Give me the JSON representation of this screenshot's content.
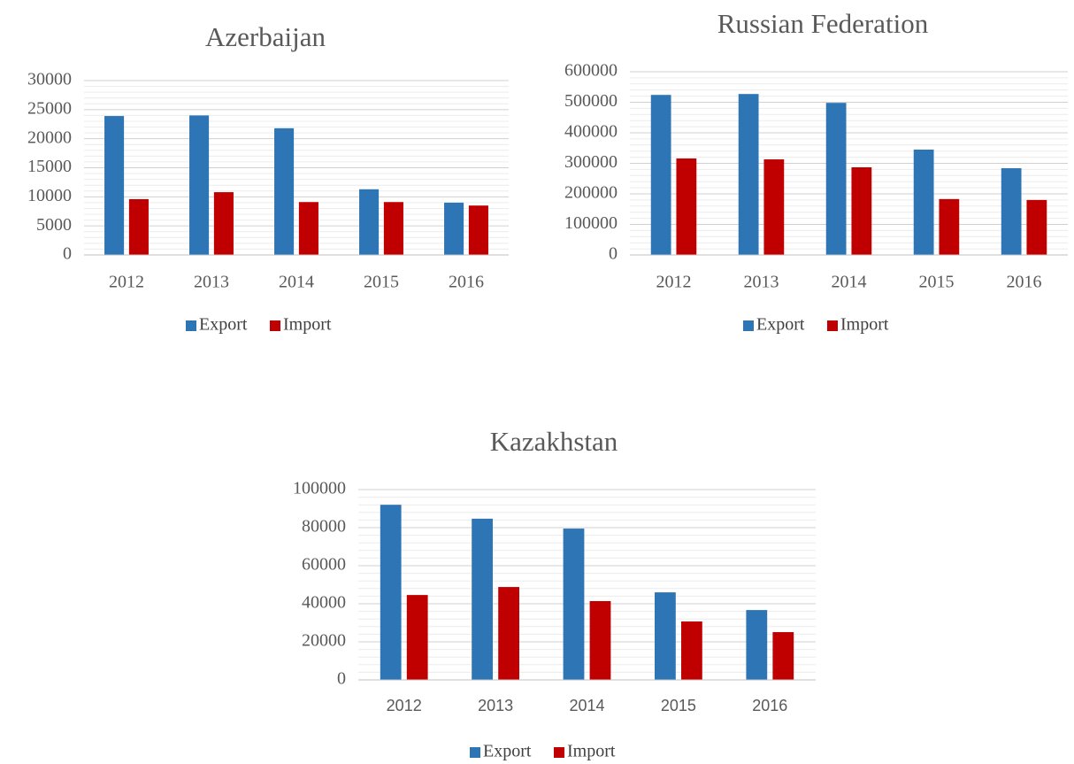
{
  "chart_data": [
    {
      "type": "bar",
      "title": "Azerbaijan",
      "categories": [
        "2012",
        "2013",
        "2014",
        "2015",
        "2016"
      ],
      "series": [
        {
          "name": "Export",
          "color": "#2e75b6",
          "values": [
            23900,
            24000,
            21800,
            11300,
            9000
          ]
        },
        {
          "name": "Import",
          "color": "#c00000",
          "values": [
            9600,
            10800,
            9100,
            9100,
            8500
          ]
        }
      ],
      "ylim": [
        0,
        30000
      ],
      "yticks": [
        0,
        5000,
        10000,
        15000,
        20000,
        25000,
        30000
      ],
      "grid": true,
      "legend": "bottom"
    },
    {
      "type": "bar",
      "title": "Russian Federation",
      "categories": [
        "2012",
        "2013",
        "2014",
        "2015",
        "2016"
      ],
      "series": [
        {
          "name": "Export",
          "color": "#2e75b6",
          "values": [
            524000,
            527000,
            498000,
            345000,
            284000
          ]
        },
        {
          "name": "Import",
          "color": "#c00000",
          "values": [
            316000,
            313000,
            287000,
            183000,
            180000
          ]
        }
      ],
      "ylim": [
        0,
        600000
      ],
      "yticks": [
        0,
        100000,
        200000,
        300000,
        400000,
        500000,
        600000
      ],
      "grid": true,
      "legend": "bottom"
    },
    {
      "type": "bar",
      "title": "Kazakhstan",
      "categories": [
        "2012",
        "2013",
        "2014",
        "2015",
        "2016"
      ],
      "series": [
        {
          "name": "Export",
          "color": "#2e75b6",
          "values": [
            92000,
            84700,
            79500,
            46000,
            36700
          ]
        },
        {
          "name": "Import",
          "color": "#c00000",
          "values": [
            44600,
            48800,
            41400,
            30700,
            25100
          ]
        }
      ],
      "ylim": [
        0,
        100000
      ],
      "yticks": [
        0,
        20000,
        40000,
        60000,
        80000,
        100000
      ],
      "grid": true,
      "legend": "bottom"
    }
  ]
}
